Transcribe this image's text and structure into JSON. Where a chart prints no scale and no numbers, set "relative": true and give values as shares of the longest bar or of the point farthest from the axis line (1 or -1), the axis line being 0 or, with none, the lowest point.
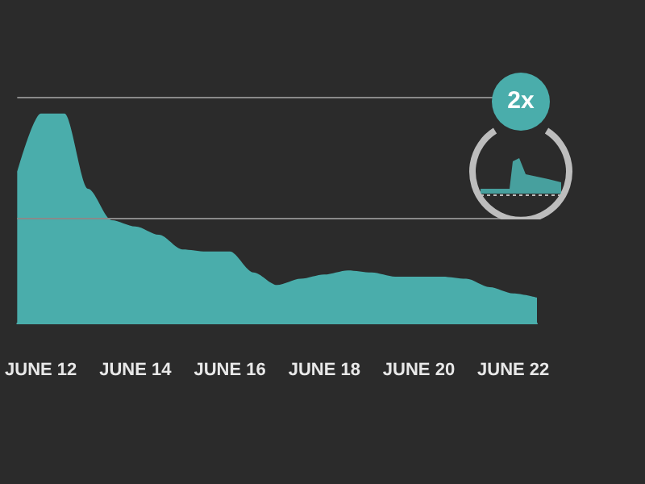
{
  "chart_data": {
    "type": "area",
    "relative": true,
    "color": "#4aadab",
    "ref_lines": [
      {
        "axis": "y",
        "value": 1.08,
        "color": "#8a8a8a"
      },
      {
        "axis": "y",
        "value": 0.5,
        "color": "#8a8a8a"
      }
    ],
    "annotations": [
      "2x"
    ],
    "categories": [
      null,
      "JUNE 12",
      null,
      null,
      null,
      "JUNE 14",
      null,
      null,
      null,
      "JUNE 16",
      null,
      null,
      null,
      "JUNE 18",
      null,
      null,
      null,
      "JUNE 20",
      null,
      null,
      null,
      "JUNE 22",
      null
    ],
    "values": [
      0.72,
      1,
      1,
      0.64,
      0.49,
      0.46,
      0.42,
      0.35,
      0.34,
      0.34,
      0.24,
      0.18,
      0.21,
      0.23,
      0.25,
      0.24,
      0.22,
      0.22,
      0.22,
      0.21,
      0.17,
      0.14,
      0.12
    ]
  }
}
